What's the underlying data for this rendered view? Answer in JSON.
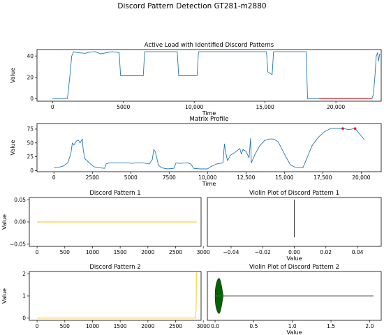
{
  "figure": {
    "suptitle": "Discord Pattern Detection GT281-m2880"
  },
  "chart_data": [
    {
      "id": "active_load",
      "type": "line",
      "title": "Active Load with Identified Discord Patterns",
      "xlabel": "Time",
      "ylabel": "Value",
      "xlim": [
        -1100,
        23200
      ],
      "ylim": [
        -2.5,
        46
      ],
      "xticks": [
        0,
        5000,
        10000,
        15000,
        20000
      ],
      "xtick_labels": [
        "0",
        "5000",
        "10,000",
        "15,000",
        "20,000"
      ],
      "yticks": [
        0,
        20,
        40
      ],
      "ytick_labels": [
        "0",
        "20",
        "40"
      ],
      "series": [
        {
          "role": "load",
          "color": "#1f77b4",
          "points": [
            [
              0,
              0
            ],
            [
              1050,
              0
            ],
            [
              1150,
              12
            ],
            [
              1250,
              25
            ],
            [
              1350,
              40
            ],
            [
              1500,
              44
            ],
            [
              1800,
              43
            ],
            [
              2300,
              42.5
            ],
            [
              2600,
              43.5
            ],
            [
              3000,
              44
            ],
            [
              3400,
              42
            ],
            [
              3800,
              43
            ],
            [
              4200,
              44
            ],
            [
              4500,
              43.5
            ],
            [
              4700,
              43
            ],
            [
              4800,
              21.5
            ],
            [
              6400,
              21.5
            ],
            [
              6500,
              44
            ],
            [
              8800,
              44
            ],
            [
              8900,
              21.5
            ],
            [
              10200,
              21.5
            ],
            [
              10300,
              44
            ],
            [
              15100,
              44
            ],
            [
              15200,
              25
            ],
            [
              15500,
              22.5
            ],
            [
              15600,
              44
            ],
            [
              17900,
              44
            ],
            [
              18000,
              0
            ],
            [
              22550,
              0
            ],
            [
              22650,
              4
            ],
            [
              22750,
              20
            ],
            [
              22850,
              40
            ],
            [
              22950,
              43
            ],
            [
              23000,
              35
            ],
            [
              23100,
              42
            ]
          ]
        },
        {
          "role": "discord",
          "color": "#ff0000",
          "points": [
            [
              18800,
              0
            ],
            [
              22500,
              0
            ]
          ]
        }
      ]
    },
    {
      "id": "matrix_profile",
      "type": "line",
      "title": "Matrix Profile",
      "xlabel": "Time",
      "ylabel": "Value",
      "xlim": [
        -1100,
        21300
      ],
      "ylim": [
        -2,
        85
      ],
      "xticks": [
        0,
        2500,
        5000,
        7500,
        10000,
        12500,
        15000,
        17500,
        20000
      ],
      "xtick_labels": [
        "0",
        "2500",
        "5000",
        "7500",
        "10,000",
        "12,500",
        "15,000",
        "17,500",
        "20,000"
      ],
      "yticks": [
        0,
        25,
        50,
        75
      ],
      "ytick_labels": [
        "0",
        "25",
        "50",
        "75"
      ],
      "series": [
        {
          "role": "profile",
          "color": "#1f77b4",
          "points": [
            [
              0,
              5
            ],
            [
              300,
              6
            ],
            [
              600,
              8
            ],
            [
              900,
              14
            ],
            [
              1100,
              30
            ],
            [
              1200,
              50
            ],
            [
              1300,
              46
            ],
            [
              1450,
              53
            ],
            [
              1600,
              55
            ],
            [
              1700,
              50
            ],
            [
              1850,
              57
            ],
            [
              1900,
              40
            ],
            [
              2000,
              22
            ],
            [
              2300,
              14
            ],
            [
              2600,
              7
            ],
            [
              3000,
              5
            ],
            [
              3300,
              4
            ],
            [
              3400,
              12
            ],
            [
              3600,
              14
            ],
            [
              4200,
              14
            ],
            [
              4800,
              14
            ],
            [
              5100,
              13
            ],
            [
              5300,
              14
            ],
            [
              5800,
              14
            ],
            [
              6200,
              12
            ],
            [
              6400,
              20
            ],
            [
              6500,
              38
            ],
            [
              6600,
              34
            ],
            [
              6800,
              10
            ],
            [
              7000,
              5
            ],
            [
              7400,
              3
            ],
            [
              7800,
              4
            ],
            [
              7950,
              14
            ],
            [
              8200,
              13
            ],
            [
              8700,
              14
            ],
            [
              8900,
              12
            ],
            [
              9100,
              4
            ],
            [
              9500,
              3
            ],
            [
              10000,
              3
            ],
            [
              10200,
              7
            ],
            [
              10600,
              12
            ],
            [
              11000,
              14
            ],
            [
              11100,
              48
            ],
            [
              11200,
              30
            ],
            [
              11300,
              18
            ],
            [
              11500,
              28
            ],
            [
              11800,
              33
            ],
            [
              12100,
              40
            ],
            [
              12200,
              30
            ],
            [
              12300,
              38
            ],
            [
              12500,
              35
            ],
            [
              12700,
              23
            ],
            [
              12800,
              58
            ],
            [
              12850,
              14
            ],
            [
              13100,
              30
            ],
            [
              13400,
              45
            ],
            [
              13700,
              54
            ],
            [
              14000,
              57
            ],
            [
              14300,
              57
            ],
            [
              14600,
              52
            ],
            [
              15000,
              30
            ],
            [
              15400,
              10
            ],
            [
              15800,
              5
            ],
            [
              16200,
              5
            ],
            [
              16500,
              25
            ],
            [
              16800,
              45
            ],
            [
              17200,
              60
            ],
            [
              17600,
              70
            ],
            [
              18000,
              76
            ],
            [
              18800,
              76
            ],
            [
              19200,
              74
            ],
            [
              19600,
              76
            ],
            [
              19900,
              66
            ],
            [
              20200,
              56
            ]
          ]
        }
      ],
      "markers": {
        "color": "#ff0000",
        "points": [
          [
            18800,
            76
          ],
          [
            19600,
            76
          ]
        ]
      }
    },
    {
      "id": "discord_pattern_1",
      "type": "line",
      "title": "Discord Pattern 1",
      "xlabel": "",
      "ylabel": "Value",
      "xlim": [
        -140,
        2960
      ],
      "ylim": [
        -0.055,
        0.055
      ],
      "xticks": [
        0,
        500,
        1000,
        1500,
        2000,
        2500,
        3000
      ],
      "xtick_labels": [
        "0",
        "500",
        "1000",
        "1500",
        "2000",
        "2500",
        "3000"
      ],
      "yticks": [
        -0.05,
        0.0,
        0.05
      ],
      "ytick_labels": [
        "−0.05",
        "0.00",
        "0.05"
      ],
      "series": [
        {
          "role": "pattern",
          "color": "#ffc000",
          "points": [
            [
              0,
              0
            ],
            [
              2880,
              0
            ]
          ]
        }
      ]
    },
    {
      "id": "violin_pattern_1",
      "type": "violin",
      "title": "Violin Plot of Discord Pattern 1",
      "xlabel": "Value",
      "ylabel": "",
      "xlim": [
        -0.055,
        0.055
      ],
      "xticks": [
        -0.04,
        -0.02,
        0.0,
        0.02,
        0.04
      ],
      "xtick_labels": [
        "−0.04",
        "−0.02",
        "0.00",
        "0.02",
        "0.04"
      ],
      "values_range": [
        0,
        0
      ],
      "color": "#2ca02c"
    },
    {
      "id": "discord_pattern_2",
      "type": "line",
      "title": "Discord Pattern 2",
      "xlabel": "",
      "ylabel": "Value",
      "xlim": [
        -140,
        2960
      ],
      "ylim": [
        -0.1,
        2.1
      ],
      "xticks": [
        0,
        500,
        1000,
        1500,
        2000,
        2500,
        3000
      ],
      "xtick_labels": [
        "0",
        "500",
        "1000",
        "1500",
        "2000",
        "2500",
        "3000"
      ],
      "yticks": [
        0,
        1,
        2
      ],
      "ytick_labels": [
        "0",
        "1",
        "2"
      ],
      "series": [
        {
          "role": "pattern",
          "color": "#ffc000",
          "points": [
            [
              0,
              0
            ],
            [
              2860,
              0
            ],
            [
              2870,
              0.4
            ],
            [
              2875,
              2.05
            ]
          ]
        }
      ]
    },
    {
      "id": "violin_pattern_2",
      "type": "violin",
      "title": "Violin Plot of Discord Pattern 2",
      "xlabel": "Value",
      "ylabel": "",
      "xlim": [
        -0.1,
        2.15
      ],
      "xticks": [
        0.0,
        0.5,
        1.0,
        1.5,
        2.0
      ],
      "xtick_labels": [
        "0.0",
        "0.5",
        "1.0",
        "1.5",
        "2.0"
      ],
      "values_range": [
        0,
        2.05
      ],
      "color": "#006400"
    }
  ]
}
